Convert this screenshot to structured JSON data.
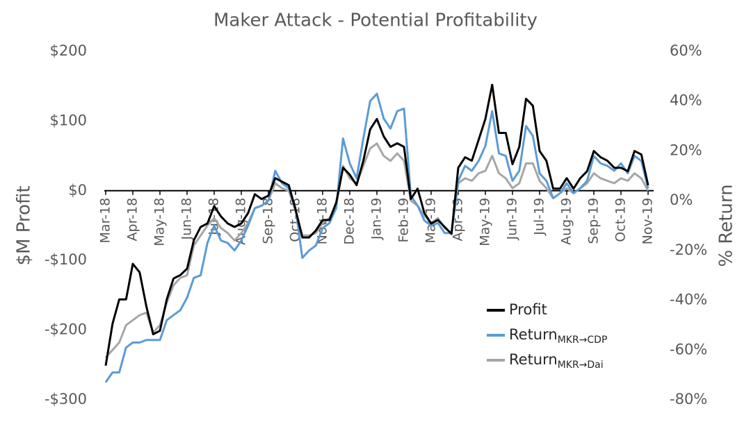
{
  "chart_data": {
    "type": "line",
    "title": "Maker Attack - Potential Profitability",
    "y_label": "$M Profit",
    "y2_label": "% Return",
    "categories": [
      "Mar-18",
      null,
      null,
      null,
      "Apr-18",
      null,
      null,
      null,
      "May-18",
      null,
      null,
      null,
      "Jun-18",
      null,
      null,
      null,
      "Jul-18",
      null,
      null,
      null,
      "Aug-18",
      null,
      null,
      null,
      "Sep-18",
      null,
      null,
      null,
      "Oct-18",
      null,
      null,
      null,
      "Nov-18",
      null,
      null,
      null,
      "Dec-18",
      null,
      null,
      null,
      "Jan-19",
      null,
      null,
      null,
      "Feb-19",
      null,
      null,
      null,
      "Mar-19",
      null,
      null,
      null,
      "Apr-19",
      null,
      null,
      null,
      "May-19",
      null,
      null,
      null,
      "Jun-19",
      null,
      null,
      null,
      "Jul-19",
      null,
      null,
      null,
      "Aug-19",
      null,
      null,
      null,
      "Sep-19",
      null,
      null,
      null,
      "Oct-19",
      null,
      null,
      null,
      "Nov-19"
    ],
    "ylim": [
      -300,
      200
    ],
    "yticks": [
      {
        "value": -300,
        "label": "-$300"
      },
      {
        "value": -200,
        "label": "-$200"
      },
      {
        "value": -100,
        "label": "-$100"
      },
      {
        "value": 0,
        "label": "$0"
      },
      {
        "value": 100,
        "label": "$100"
      },
      {
        "value": 200,
        "label": "$200"
      }
    ],
    "y2lim": [
      -80,
      60
    ],
    "y2ticks": [
      {
        "value": -80,
        "label": "-80%"
      },
      {
        "value": -60,
        "label": "-60%"
      },
      {
        "value": -40,
        "label": "-40%"
      },
      {
        "value": -20,
        "label": "-20%"
      },
      {
        "value": 0,
        "label": "0%"
      },
      {
        "value": 20,
        "label": "20%"
      },
      {
        "value": 40,
        "label": "40%"
      },
      {
        "value": 60,
        "label": "60%"
      }
    ],
    "grid": false,
    "legend": "lower right",
    "series": [
      {
        "name": "Return",
        "subscript": "MKR→Dai",
        "color": "#a6a6a6",
        "axis": "y2",
        "values": [
          -63,
          -60,
          -57,
          -50,
          -48,
          -46,
          -45,
          -53,
          -50,
          -41,
          -34,
          -31,
          -30,
          -18,
          -14,
          -10,
          -7,
          -11,
          -13,
          -16,
          -13,
          -9,
          -3,
          -2,
          0,
          7,
          5,
          4,
          -4,
          -14,
          -14,
          -13,
          -9,
          -7,
          -2,
          14,
          9,
          7,
          14,
          21,
          23,
          18,
          16,
          19,
          16,
          0,
          -2,
          -6,
          -9,
          -7,
          -11,
          -13,
          7,
          9,
          8,
          11,
          12,
          18,
          11,
          9,
          5,
          7,
          15,
          15,
          8,
          5,
          1,
          3,
          5,
          3,
          5,
          7,
          11,
          9,
          8,
          7,
          9,
          8,
          11,
          9,
          4
        ]
      },
      {
        "name": "Return",
        "subscript": "MKR→CDP",
        "color": "#5b9bd5",
        "axis": "y2",
        "values": [
          -73,
          -69,
          -69,
          -59,
          -57,
          -57,
          -56,
          -56,
          -56,
          -48,
          -46,
          -44,
          -39,
          -31,
          -30,
          -17,
          -10,
          -16,
          -17,
          -20,
          -16,
          -10,
          -3,
          -2,
          0,
          12,
          7,
          5,
          -3,
          -23,
          -20,
          -18,
          -11,
          -9,
          -3,
          25,
          15,
          9,
          25,
          40,
          43,
          33,
          29,
          36,
          37,
          2,
          -2,
          -8,
          -10,
          -9,
          -13,
          -13,
          8,
          14,
          12,
          16,
          22,
          36,
          19,
          18,
          8,
          12,
          30,
          26,
          11,
          8,
          1,
          3,
          7,
          3,
          5,
          8,
          18,
          15,
          14,
          12,
          15,
          11,
          18,
          16,
          5
        ]
      },
      {
        "name": "Profit",
        "color": "#000000",
        "values": [
          -251,
          -191,
          -156,
          -156,
          -105,
          -117,
          -166,
          -206,
          -201,
          -156,
          -126,
          -121,
          -112,
          -71,
          -52,
          -47,
          -22,
          -37,
          -47,
          -52,
          -47,
          -32,
          -5,
          -12,
          -7,
          18,
          13,
          8,
          -27,
          -67,
          -67,
          -57,
          -42,
          -42,
          -17,
          33,
          23,
          8,
          43,
          88,
          103,
          78,
          63,
          68,
          63,
          -12,
          3,
          -32,
          -47,
          -42,
          -52,
          -62,
          33,
          48,
          43,
          73,
          103,
          152,
          83,
          83,
          38,
          63,
          132,
          122,
          57,
          43,
          3,
          3,
          18,
          3,
          18,
          28,
          57,
          48,
          43,
          33,
          33,
          28,
          57,
          52,
          8
        ]
      }
    ]
  }
}
